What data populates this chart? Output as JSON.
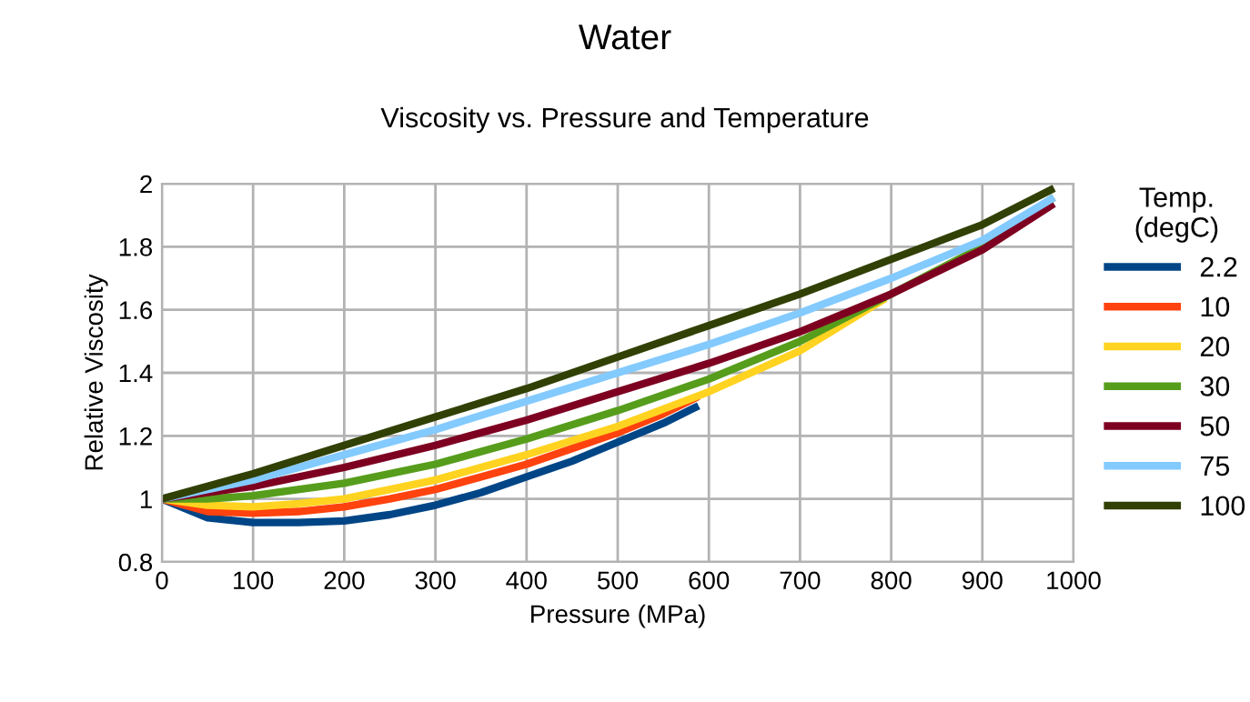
{
  "chart_data": {
    "type": "line",
    "title": "Water",
    "subtitle": "Viscosity vs. Pressure and Temperature",
    "xlabel": "Pressure (MPa)",
    "ylabel": "Relative Viscosity",
    "legend_title": "Temp.\n(degC)",
    "legend": "right",
    "grid": true,
    "marker": "none",
    "line_style": "solid",
    "xlim": [
      0,
      1000
    ],
    "xticks": [
      0,
      100,
      200,
      300,
      400,
      500,
      600,
      700,
      800,
      900,
      1000
    ],
    "ylim": [
      0.8,
      2
    ],
    "yticks": [
      0.8,
      1,
      1.2,
      1.4,
      1.6,
      1.8,
      2
    ],
    "series": [
      {
        "name": "2.2",
        "color": "#004586",
        "x": [
          0,
          50,
          100,
          150,
          200,
          250,
          300,
          350,
          400,
          450,
          500,
          550,
          585
        ],
        "values": [
          1,
          0.94,
          0.925,
          0.925,
          0.93,
          0.95,
          0.98,
          1.02,
          1.07,
          1.12,
          1.18,
          1.24,
          1.29
        ]
      },
      {
        "name": "10",
        "color": "#ff420e",
        "x": [
          0,
          50,
          100,
          150,
          200,
          250,
          300,
          350,
          400,
          450,
          500,
          550,
          585
        ],
        "values": [
          1,
          0.96,
          0.955,
          0.96,
          0.975,
          1.0,
          1.03,
          1.07,
          1.11,
          1.16,
          1.21,
          1.27,
          1.32
        ]
      },
      {
        "name": "20",
        "color": "#ffd320",
        "x": [
          0,
          50,
          100,
          150,
          200,
          300,
          400,
          500,
          600,
          700,
          790
        ],
        "values": [
          1,
          0.98,
          0.975,
          0.985,
          1.0,
          1.06,
          1.14,
          1.23,
          1.34,
          1.47,
          1.63
        ]
      },
      {
        "name": "30",
        "color": "#579d1c",
        "x": [
          0,
          50,
          100,
          200,
          300,
          400,
          500,
          600,
          700,
          800,
          900,
          975
        ],
        "values": [
          1,
          1.0,
          1.01,
          1.05,
          1.11,
          1.19,
          1.28,
          1.38,
          1.5,
          1.65,
          1.8,
          1.95
        ]
      },
      {
        "name": "50",
        "color": "#7e0021",
        "x": [
          0,
          100,
          200,
          300,
          400,
          500,
          600,
          700,
          800,
          900,
          975
        ],
        "values": [
          1,
          1.04,
          1.1,
          1.17,
          1.25,
          1.34,
          1.43,
          1.53,
          1.65,
          1.79,
          1.93
        ]
      },
      {
        "name": "75",
        "color": "#83caff",
        "x": [
          0,
          100,
          200,
          300,
          400,
          500,
          600,
          700,
          800,
          900,
          975
        ],
        "values": [
          1,
          1.06,
          1.14,
          1.22,
          1.31,
          1.4,
          1.49,
          1.59,
          1.7,
          1.82,
          1.95
        ]
      },
      {
        "name": "100",
        "color": "#314004",
        "x": [
          0,
          100,
          200,
          300,
          400,
          500,
          600,
          700,
          800,
          900,
          975
        ],
        "values": [
          1,
          1.08,
          1.17,
          1.26,
          1.35,
          1.45,
          1.55,
          1.65,
          1.76,
          1.87,
          1.98
        ]
      }
    ]
  }
}
